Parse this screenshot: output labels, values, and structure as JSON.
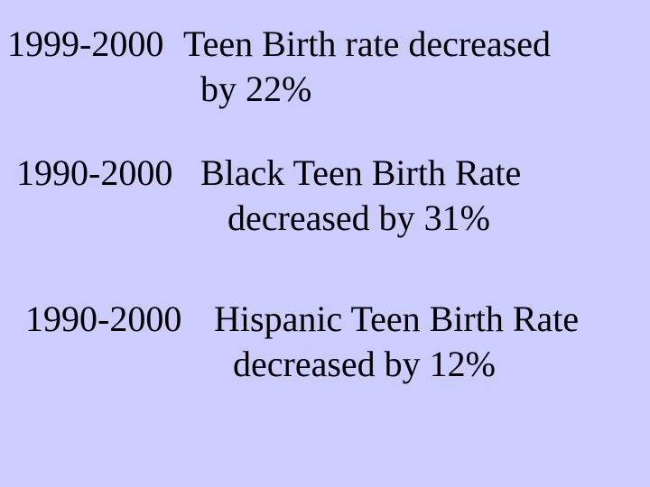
{
  "items": [
    {
      "period": "1999-2000",
      "lines": [
        "Teen Birth rate decreased",
        "by 22%"
      ]
    },
    {
      "period": "1990-2000",
      "lines": [
        "Black Teen Birth Rate",
        "decreased by 31%"
      ]
    },
    {
      "period": "1990-2000",
      "lines": [
        "Hispanic Teen Birth Rate",
        "decreased by 12%"
      ]
    }
  ]
}
